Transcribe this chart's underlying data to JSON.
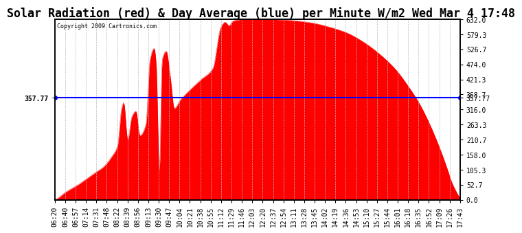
{
  "title": "Solar Radiation (red) & Day Average (blue) per Minute W/m2 Wed Mar 4 17:48",
  "copyright_text": "Copyright 2009 Cartronics.com",
  "y_right_labels": [
    "632.0",
    "579.3",
    "526.7",
    "474.0",
    "421.3",
    "368.7",
    "316.0",
    "263.3",
    "210.7",
    "158.0",
    "105.3",
    "52.7",
    "0.0"
  ],
  "y_right_values": [
    632.0,
    579.3,
    526.7,
    474.0,
    421.3,
    368.7,
    316.0,
    263.3,
    210.7,
    158.0,
    105.3,
    52.7,
    0.0
  ],
  "y_left_label": "357.77",
  "average_value": 357.77,
  "x_labels": [
    "06:20",
    "06:40",
    "06:57",
    "07:14",
    "07:31",
    "07:48",
    "08:22",
    "08:39",
    "08:56",
    "09:13",
    "09:30",
    "09:47",
    "10:04",
    "10:21",
    "10:38",
    "10:55",
    "11:12",
    "11:29",
    "11:46",
    "12:03",
    "12:20",
    "12:37",
    "12:54",
    "13:11",
    "13:28",
    "13:45",
    "14:02",
    "14:19",
    "14:36",
    "14:53",
    "15:10",
    "15:27",
    "15:44",
    "16:01",
    "16:18",
    "16:35",
    "16:52",
    "17:09",
    "17:26",
    "17:43"
  ],
  "background_color": "#ffffff",
  "fill_color": "#ff0000",
  "average_line_color": "#0000ff",
  "grid_color": "#bbbbbb",
  "title_fontsize": 12,
  "tick_fontsize": 7,
  "y_max": 632.0,
  "y_min": 0.0
}
